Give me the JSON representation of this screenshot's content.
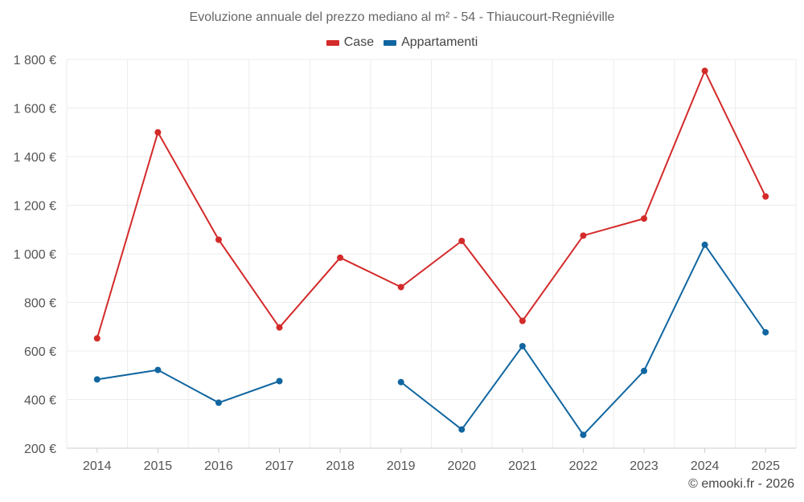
{
  "chart_data": {
    "type": "line",
    "title": "Evoluzione annuale del prezzo mediano al m² - 54 - Thiaucourt-Regniéville",
    "xlabel": "",
    "ylabel": "",
    "categories": [
      "2014",
      "2015",
      "2016",
      "2017",
      "2018",
      "2019",
      "2020",
      "2021",
      "2022",
      "2023",
      "2024",
      "2025"
    ],
    "ylim": [
      200,
      1800
    ],
    "yticks": [
      200,
      400,
      600,
      800,
      1000,
      1200,
      1400,
      1600,
      1800
    ],
    "ytick_labels": [
      "200 €",
      "400 €",
      "600 €",
      "800 €",
      "1 000 €",
      "1 200 €",
      "1 400 €",
      "1 600 €",
      "1 800 €"
    ],
    "grid": true,
    "legend_position": "top-center",
    "series": [
      {
        "name": "Case",
        "color": "#d42a2a",
        "values": [
          652,
          1500,
          1058,
          697,
          984,
          863,
          1053,
          724,
          1075,
          1145,
          1753,
          1236
        ]
      },
      {
        "name": "Appartamenti",
        "color": "#1166a0",
        "values": [
          483,
          522,
          387,
          476,
          null,
          472,
          277,
          620,
          255,
          518,
          1037,
          677
        ]
      }
    ]
  },
  "footer": {
    "credit": "© emooki.fr - 2026"
  }
}
